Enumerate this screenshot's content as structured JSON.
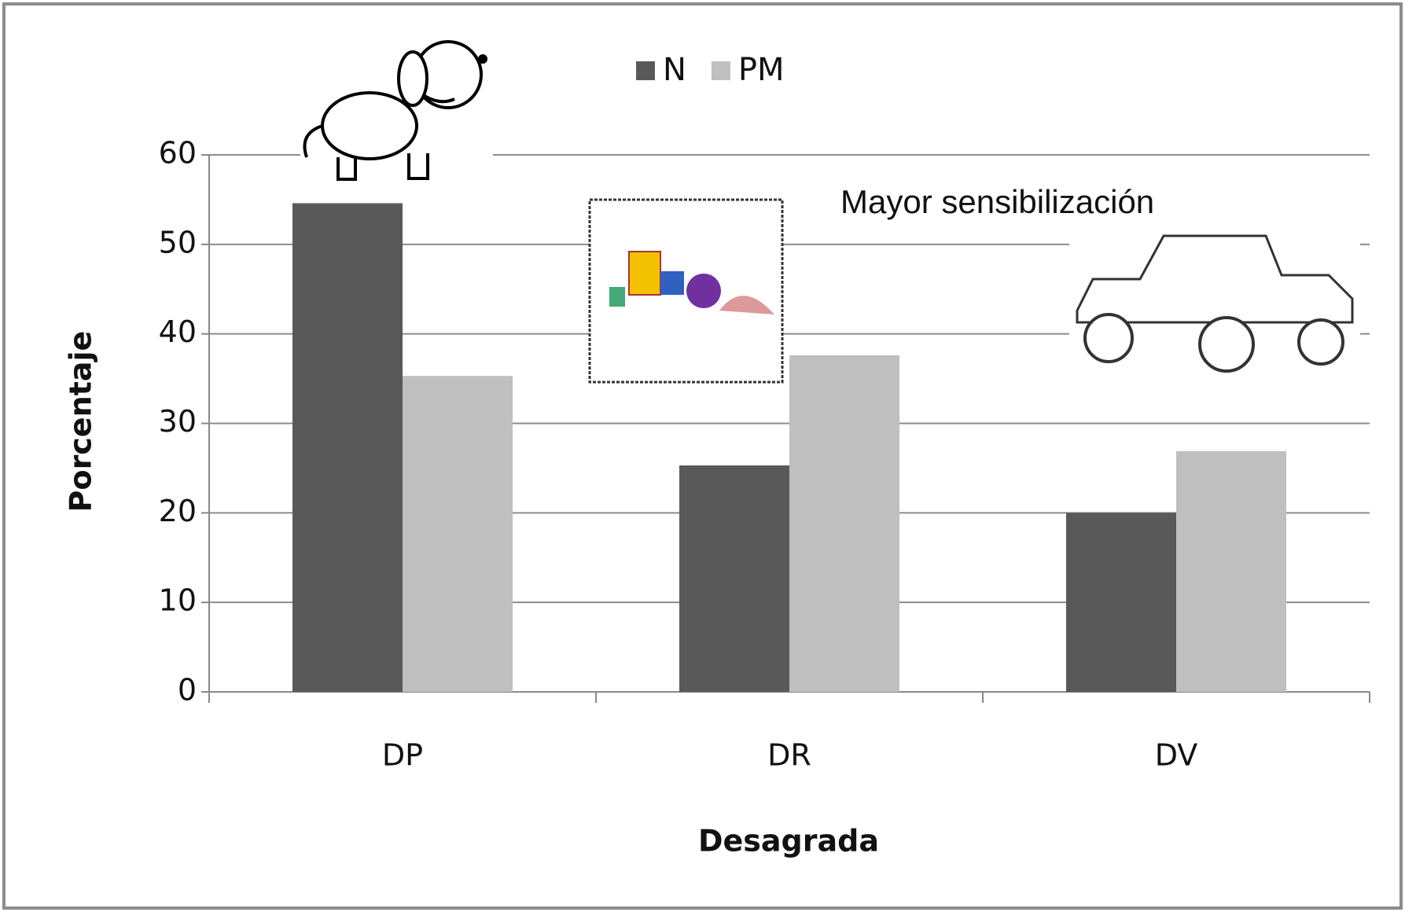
{
  "chart_data": {
    "type": "bar",
    "x_label": "Desagrada",
    "y_label": "Porcentaje",
    "annotation": "Mayor sensibilización",
    "categories": [
      "DP",
      "DR",
      "DV"
    ],
    "series": [
      {
        "name": "N",
        "color": "#595959",
        "values": [
          54.6,
          25.3,
          20
        ]
      },
      {
        "name": "PM",
        "color": "#bfbfbf",
        "values": [
          35.3,
          37.6,
          26.9
        ]
      }
    ],
    "ylim": [
      0,
      60
    ],
    "yticks": [
      0,
      10,
      20,
      30,
      40,
      50,
      60
    ],
    "grid": true
  }
}
